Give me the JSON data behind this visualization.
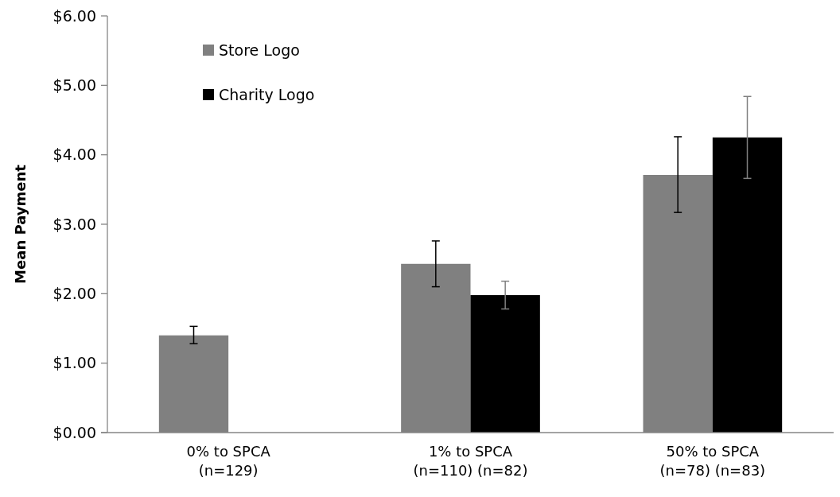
{
  "chart_data": {
    "type": "bar",
    "ylabel": "Mean Payment",
    "categories": [
      "0% to SPCA\n(n=129)",
      "1% to SPCA\n(n=110) (n=82)",
      "50% to SPCA\n(n=78) (n=83)"
    ],
    "series": [
      {
        "name": "Store Logo",
        "color": "#808080",
        "values": [
          1.4,
          2.43,
          3.71
        ],
        "errors": [
          [
            1.28,
            1.53
          ],
          [
            2.1,
            2.76
          ],
          [
            3.17,
            4.26
          ]
        ]
      },
      {
        "name": "Charity Logo",
        "color": "#000000",
        "values": [
          null,
          1.98,
          4.25
        ],
        "errors": [
          null,
          [
            1.78,
            2.18
          ],
          [
            3.66,
            4.84
          ]
        ]
      }
    ],
    "ylim": [
      0,
      6
    ],
    "yticks": [
      {
        "value": 0,
        "label": "$0.00"
      },
      {
        "value": 1,
        "label": "$1.00"
      },
      {
        "value": 2,
        "label": "$2.00"
      },
      {
        "value": 3,
        "label": "$3.00"
      },
      {
        "value": 4,
        "label": "$4.00"
      },
      {
        "value": 5,
        "label": "$5.00"
      },
      {
        "value": 6,
        "label": "$6.00"
      }
    ],
    "grid": false,
    "legend": "top left"
  }
}
